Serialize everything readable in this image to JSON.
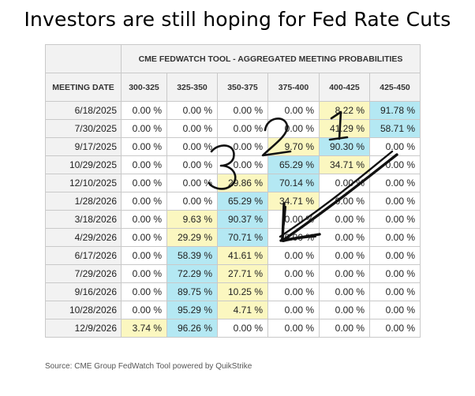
{
  "title": "Investors are still hoping for Fed Rate Cuts",
  "table": {
    "caption": "CME FEDWATCH TOOL - AGGREGATED MEETING PROBABILITIES",
    "first_col_header": "MEETING DATE",
    "columns": [
      "300-325",
      "325-350",
      "350-375",
      "375-400",
      "400-425",
      "425-450"
    ],
    "rows": [
      {
        "date": "6/18/2025",
        "cells": [
          "0.00 %",
          "0.00 %",
          "0.00 %",
          "0.00 %",
          "8.22 %",
          "91.78 %"
        ],
        "colors": [
          "w",
          "w",
          "w",
          "w",
          "y",
          "b"
        ]
      },
      {
        "date": "7/30/2025",
        "cells": [
          "0.00 %",
          "0.00 %",
          "0.00 %",
          "0.00 %",
          "41.29 %",
          "58.71 %"
        ],
        "colors": [
          "w",
          "w",
          "w",
          "w",
          "y",
          "b"
        ]
      },
      {
        "date": "9/17/2025",
        "cells": [
          "0.00 %",
          "0.00 %",
          "0.00 %",
          "9.70 %",
          "90.30 %",
          "0.00 %"
        ],
        "colors": [
          "w",
          "w",
          "w",
          "y",
          "b",
          "w"
        ]
      },
      {
        "date": "10/29/2025",
        "cells": [
          "0.00 %",
          "0.00 %",
          "0.00 %",
          "65.29 %",
          "34.71 %",
          "0.00 %"
        ],
        "colors": [
          "w",
          "w",
          "w",
          "b",
          "y",
          "w"
        ]
      },
      {
        "date": "12/10/2025",
        "cells": [
          "0.00 %",
          "0.00 %",
          "29.86 %",
          "70.14 %",
          "0.00 %",
          "0.00 %"
        ],
        "colors": [
          "w",
          "w",
          "y",
          "b",
          "w",
          "w"
        ]
      },
      {
        "date": "1/28/2026",
        "cells": [
          "0.00 %",
          "0.00 %",
          "65.29 %",
          "34.71 %",
          "0.00 %",
          "0.00 %"
        ],
        "colors": [
          "w",
          "w",
          "b",
          "y",
          "w",
          "w"
        ]
      },
      {
        "date": "3/18/2026",
        "cells": [
          "0.00 %",
          "9.63 %",
          "90.37 %",
          "0.00 %",
          "0.00 %",
          "0.00 %"
        ],
        "colors": [
          "w",
          "y",
          "b",
          "w",
          "w",
          "w"
        ]
      },
      {
        "date": "4/29/2026",
        "cells": [
          "0.00 %",
          "29.29 %",
          "70.71 %",
          "0.00 %",
          "0.00 %",
          "0.00 %"
        ],
        "colors": [
          "w",
          "y",
          "b",
          "w",
          "w",
          "w"
        ]
      },
      {
        "date": "6/17/2026",
        "cells": [
          "0.00 %",
          "58.39 %",
          "41.61 %",
          "0.00 %",
          "0.00 %",
          "0.00 %"
        ],
        "colors": [
          "w",
          "b",
          "y",
          "w",
          "w",
          "w"
        ]
      },
      {
        "date": "7/29/2026",
        "cells": [
          "0.00 %",
          "72.29 %",
          "27.71 %",
          "0.00 %",
          "0.00 %",
          "0.00 %"
        ],
        "colors": [
          "w",
          "b",
          "y",
          "w",
          "w",
          "w"
        ]
      },
      {
        "date": "9/16/2026",
        "cells": [
          "0.00 %",
          "89.75 %",
          "10.25 %",
          "0.00 %",
          "0.00 %",
          "0.00 %"
        ],
        "colors": [
          "w",
          "b",
          "y",
          "w",
          "w",
          "w"
        ]
      },
      {
        "date": "10/28/2026",
        "cells": [
          "0.00 %",
          "95.29 %",
          "4.71 %",
          "0.00 %",
          "0.00 %",
          "0.00 %"
        ],
        "colors": [
          "w",
          "b",
          "y",
          "w",
          "w",
          "w"
        ]
      },
      {
        "date": "12/9/2026",
        "cells": [
          "3.74 %",
          "96.26 %",
          "0.00 %",
          "0.00 %",
          "0.00 %",
          "0.00 %"
        ],
        "colors": [
          "y",
          "b",
          "w",
          "w",
          "w",
          "w"
        ]
      }
    ]
  },
  "colors": {
    "highlight_high": "#b4e8f3",
    "highlight_low": "#fbf7c0",
    "header_bg": "#f2f2f2"
  },
  "annotations": {
    "numbers": [
      "1",
      "2",
      "3"
    ],
    "arrow": "hand-drawn-arrow"
  },
  "source": "Source: CME Group FedWatch Tool powered by QuikStrike"
}
